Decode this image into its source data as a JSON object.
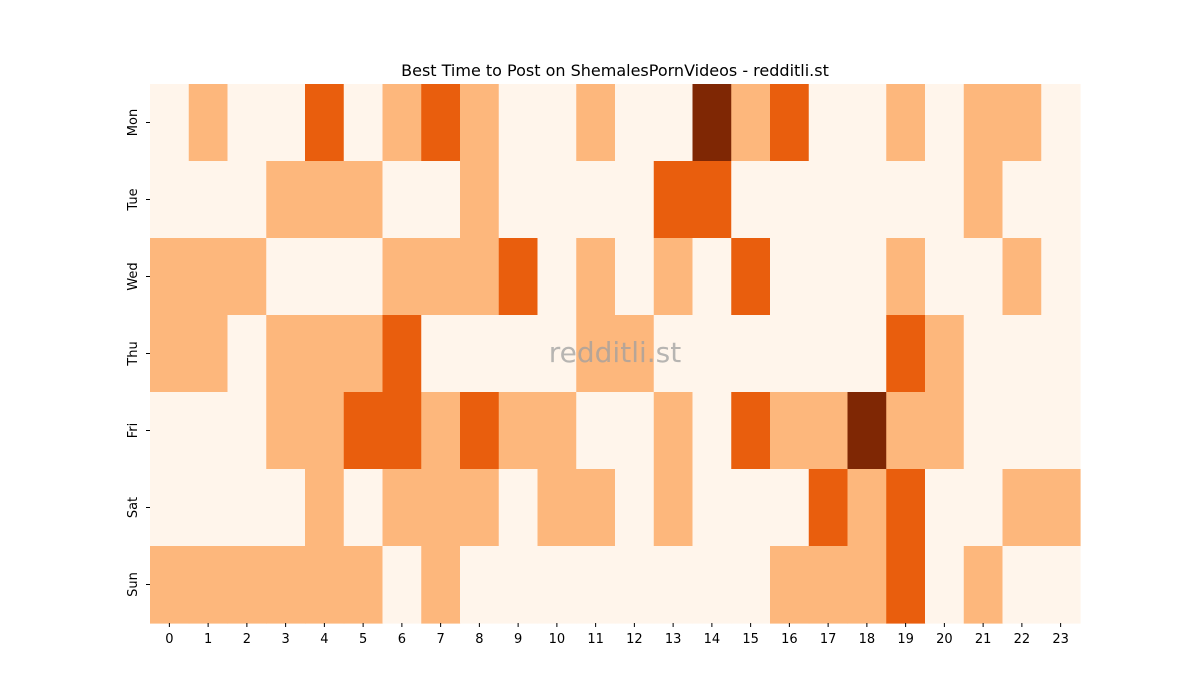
{
  "chart_data": {
    "type": "heatmap",
    "title": "Best Time to Post on ShemalesPornVideos - redditli.st",
    "watermark": "redditli.st",
    "x_labels": [
      "0",
      "1",
      "2",
      "3",
      "4",
      "5",
      "6",
      "7",
      "8",
      "9",
      "10",
      "11",
      "12",
      "13",
      "14",
      "15",
      "16",
      "17",
      "18",
      "19",
      "20",
      "21",
      "22",
      "23"
    ],
    "y_labels": [
      "Mon",
      "Tue",
      "Wed",
      "Thu",
      "Fri",
      "Sat",
      "Sun"
    ],
    "values": [
      [
        0,
        1,
        0,
        0,
        2,
        0,
        1,
        2,
        1,
        0,
        0,
        1,
        0,
        0,
        3,
        1,
        2,
        0,
        0,
        1,
        0,
        1,
        1,
        0
      ],
      [
        0,
        0,
        0,
        1,
        1,
        1,
        0,
        0,
        1,
        0,
        0,
        0,
        0,
        2,
        2,
        0,
        0,
        0,
        0,
        0,
        0,
        1,
        0,
        0
      ],
      [
        1,
        1,
        1,
        0,
        0,
        0,
        1,
        1,
        1,
        2,
        0,
        1,
        0,
        1,
        0,
        2,
        0,
        0,
        0,
        1,
        0,
        0,
        1,
        0
      ],
      [
        1,
        1,
        0,
        1,
        1,
        1,
        2,
        0,
        0,
        0,
        0,
        1,
        1,
        0,
        0,
        0,
        0,
        0,
        0,
        2,
        1,
        0,
        0,
        0
      ],
      [
        0,
        0,
        0,
        1,
        1,
        2,
        2,
        1,
        2,
        1,
        1,
        0,
        0,
        1,
        0,
        2,
        1,
        1,
        3,
        1,
        1,
        0,
        0,
        0
      ],
      [
        0,
        0,
        0,
        0,
        1,
        0,
        1,
        1,
        1,
        0,
        1,
        1,
        0,
        1,
        0,
        0,
        0,
        2,
        1,
        2,
        0,
        0,
        1,
        1
      ],
      [
        1,
        1,
        1,
        1,
        1,
        1,
        0,
        1,
        0,
        0,
        0,
        0,
        0,
        0,
        0,
        0,
        1,
        1,
        1,
        2,
        0,
        1,
        0,
        0
      ]
    ],
    "value_range": [
      0,
      3
    ],
    "colors": [
      "#fff5eb",
      "#fdb77c",
      "#e95e0d",
      "#7f2704"
    ],
    "colormap": "Oranges",
    "grid": false,
    "legend": "none"
  }
}
